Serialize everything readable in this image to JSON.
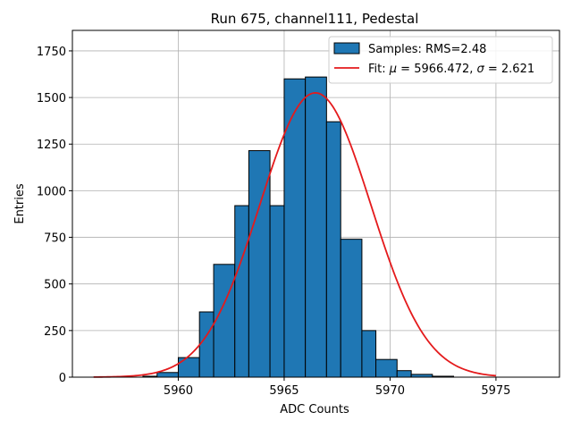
{
  "chart_data": {
    "type": "bar",
    "title": "Run 675, channel111, Pedestal",
    "xlabel": "ADC Counts",
    "ylabel": "Entries",
    "xlim": [
      5955,
      5978
    ],
    "ylim": [
      0,
      1860
    ],
    "xticks": [
      5960,
      5965,
      5970,
      5975
    ],
    "yticks": [
      0,
      250,
      500,
      750,
      1000,
      1250,
      1500,
      1750
    ],
    "grid": true,
    "legend_position": "top-right",
    "histogram": {
      "name": "Samples: RMS=2.48",
      "color": "#1f77b4",
      "edge_color": "#000000",
      "bins": [
        {
          "x0": 5957.0,
          "x1": 5958.33,
          "count": 0
        },
        {
          "x0": 5958.33,
          "x1": 5959.0,
          "count": 5
        },
        {
          "x0": 5959.0,
          "x1": 5960.0,
          "count": 25
        },
        {
          "x0": 5960.0,
          "x1": 5961.0,
          "count": 105
        },
        {
          "x0": 5961.0,
          "x1": 5961.67,
          "count": 350
        },
        {
          "x0": 5961.67,
          "x1": 5962.67,
          "count": 605
        },
        {
          "x0": 5962.67,
          "x1": 5963.33,
          "count": 920
        },
        {
          "x0": 5963.33,
          "x1": 5964.33,
          "count": 1215
        },
        {
          "x0": 5964.33,
          "x1": 5965.0,
          "count": 920
        },
        {
          "x0": 5965.0,
          "x1": 5966.0,
          "count": 1600
        },
        {
          "x0": 5966.0,
          "x1": 5967.0,
          "count": 1610
        },
        {
          "x0": 5967.0,
          "x1": 5967.67,
          "count": 1370
        },
        {
          "x0": 5967.67,
          "x1": 5968.67,
          "count": 740
        },
        {
          "x0": 5968.67,
          "x1": 5969.33,
          "count": 250
        },
        {
          "x0": 5969.33,
          "x1": 5970.33,
          "count": 95
        },
        {
          "x0": 5970.33,
          "x1": 5971.0,
          "count": 35
        },
        {
          "x0": 5971.0,
          "x1": 5972.0,
          "count": 15
        },
        {
          "x0": 5972.0,
          "x1": 5973.0,
          "count": 5
        }
      ]
    },
    "fit": {
      "name": "Fit: μ = 5966.472, σ = 2.621",
      "legend_prefix": "Fit: ",
      "mu_symbol": "μ",
      "mu_value": " = 5966.472, ",
      "sigma_symbol": "σ",
      "sigma_value": " = 2.621",
      "color": "#e41a1c",
      "mu": 5966.472,
      "sigma": 2.621,
      "amplitude": 1525,
      "x_range": [
        5956,
        5975
      ]
    }
  }
}
